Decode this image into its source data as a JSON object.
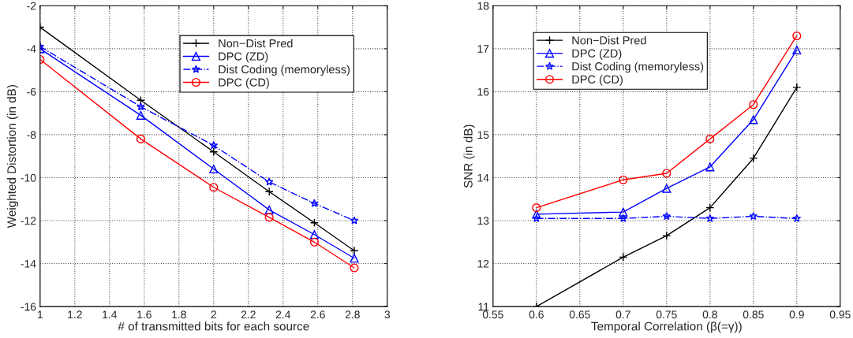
{
  "chart_data": [
    {
      "type": "line",
      "xlabel": "# of transmitted bits for each source",
      "ylabel": "Weighted Distortion (in dB)",
      "xlim": [
        1,
        3
      ],
      "xticks": [
        1,
        1.2,
        1.4,
        1.6,
        1.8,
        2,
        2.2,
        2.4,
        2.6,
        2.8,
        3
      ],
      "ylim": [
        -16,
        -2
      ],
      "yticks": [
        -16,
        -14,
        -12,
        -10,
        -8,
        -6,
        -4,
        -2
      ],
      "grid": true,
      "legend": "top right",
      "x": [
        1,
        1.58,
        2,
        2.32,
        2.58,
        2.81
      ],
      "series": [
        {
          "name": "Non−Dist Pred",
          "color": "#000000",
          "marker": "cross",
          "line_style": "solid",
          "values": [
            -3,
            -6.4,
            -8.8,
            -10.65,
            -12.1,
            -13.4
          ]
        },
        {
          "name": "DPC (ZD)",
          "color": "#0000ff",
          "marker": "triangle",
          "line_style": "solid",
          "values": [
            -4,
            -7.1,
            -9.6,
            -11.5,
            -12.65,
            -13.75
          ]
        },
        {
          "name": "Dist Coding (memoryless)",
          "color": "#0000ff",
          "marker": "star",
          "line_style": "dashed",
          "values": [
            -3.9,
            -6.7,
            -8.5,
            -10.2,
            -11.2,
            -12.0
          ]
        },
        {
          "name": "DPC (CD)",
          "color": "#ff0000",
          "marker": "circle",
          "line_style": "solid",
          "values": [
            -4.5,
            -8.2,
            -10.45,
            -11.85,
            -13.0,
            -14.2
          ]
        }
      ]
    },
    {
      "type": "line",
      "xlabel": "Temporal Correlation (β(=γ))",
      "ylabel": "SNR (in dB)",
      "xlim": [
        0.55,
        0.95
      ],
      "xticks": [
        0.55,
        0.6,
        0.65,
        0.7,
        0.75,
        0.8,
        0.85,
        0.9,
        0.95
      ],
      "ylim": [
        11,
        18
      ],
      "yticks": [
        11,
        12,
        13,
        14,
        15,
        16,
        17,
        18
      ],
      "grid": true,
      "legend": "top left",
      "x": [
        0.6,
        0.7,
        0.75,
        0.8,
        0.85,
        0.9
      ],
      "series": [
        {
          "name": "Non−Dist Pred",
          "color": "#000000",
          "marker": "cross",
          "line_style": "solid",
          "values": [
            11.0,
            12.15,
            12.65,
            13.3,
            14.45,
            16.1
          ]
        },
        {
          "name": "DPC (ZD)",
          "color": "#0000ff",
          "marker": "triangle",
          "line_style": "solid",
          "values": [
            13.15,
            13.2,
            13.75,
            14.25,
            15.35,
            16.97
          ]
        },
        {
          "name": "Dist Coding (memoryless)",
          "color": "#0000ff",
          "marker": "star",
          "line_style": "dashed",
          "values": [
            13.05,
            13.05,
            13.1,
            13.05,
            13.1,
            13.05
          ]
        },
        {
          "name": "DPC (CD)",
          "color": "#ff0000",
          "marker": "circle",
          "line_style": "solid",
          "values": [
            13.3,
            13.95,
            14.1,
            14.9,
            15.7,
            17.3
          ]
        }
      ]
    }
  ]
}
